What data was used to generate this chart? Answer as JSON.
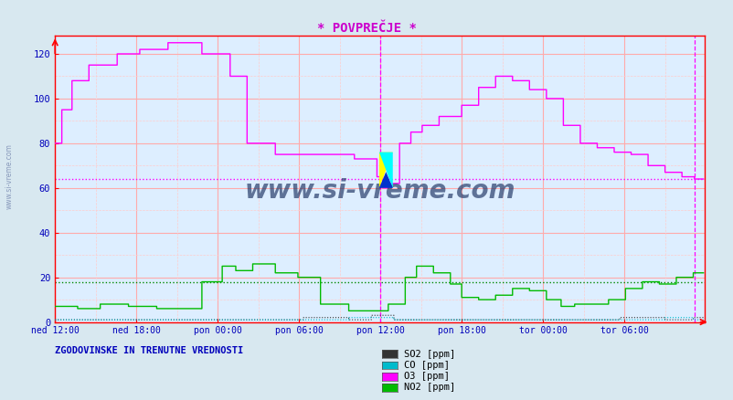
{
  "title": "* POVPREČJE *",
  "title_color": "#cc00cc",
  "bg_color": "#d8e8f0",
  "plot_bg_color": "#ddeeff",
  "xlabel_ticks": [
    "ned 12:00",
    "ned 18:00",
    "pon 00:00",
    "pon 06:00",
    "pon 12:00",
    "pon 18:00",
    "tor 00:00",
    "tor 06:00"
  ],
  "ylabel_ticks": [
    0,
    20,
    40,
    60,
    80,
    100,
    120
  ],
  "ylim": [
    0,
    128
  ],
  "xlim": [
    0,
    575
  ],
  "footer_text": "ZGODOVINSKE IN TRENUTNE VREDNOSTI",
  "watermark": "www.si-vreme.com",
  "grid_major_color": "#ffaaaa",
  "grid_minor_color": "#ffcccc",
  "hline_O3_value": 64,
  "hline_NO2_value": 18,
  "hline_O3_color": "#ff00ff",
  "hline_NO2_color": "#008800",
  "vline1_x": 288,
  "vline2_x": 566,
  "vline_color": "#ff00ff",
  "series_SO2_color": "#333333",
  "series_CO_color": "#00bbcc",
  "series_O3_color": "#ff00ff",
  "series_NO2_color": "#00bb00",
  "legend_labels": [
    "SO2 [ppm]",
    "CO [ppm]",
    "O3 [ppm]",
    "NO2 [ppm]"
  ],
  "legend_colors": [
    "#333333",
    "#00bbcc",
    "#ff00ff",
    "#00bb00"
  ],
  "n_points": 575,
  "tick_color": "#0000bb",
  "axis_color": "#ff0000",
  "watermark_color": "#1a3060",
  "xtick_positions": [
    0,
    72,
    144,
    216,
    288,
    360,
    432,
    504
  ]
}
